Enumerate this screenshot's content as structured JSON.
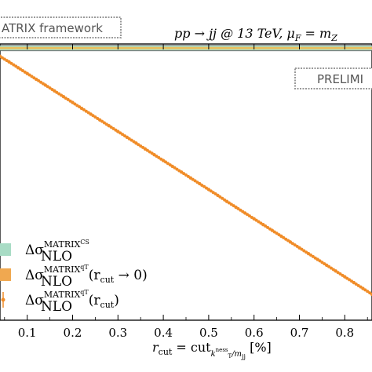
{
  "header": {
    "framework_label": "ATRIX framework",
    "process_label": "pp → jj @ 13 TeV, μ",
    "process_sub": "F",
    "process_tail": " = m",
    "process_tail_sub": "Z",
    "prelim_label": "PRELIMI"
  },
  "legend": {
    "entries": [
      {
        "main": "Δσ",
        "sub": "NLO",
        "sup": "MATRIX",
        "sup2": "CS",
        "tail": "",
        "color": "#a8dcc5",
        "kind": "band"
      },
      {
        "main": "Δσ",
        "sub": "NLO",
        "sup": "MATRIX",
        "sup2": "qT",
        "tail": "(r",
        "tail_sub": "cut",
        "tail_end": " → 0)",
        "color": "#f0a850",
        "kind": "band"
      },
      {
        "main": "Δσ",
        "sub": "NLO",
        "sup": "MATRIX",
        "sup2": "qT",
        "tail": "(r",
        "tail_sub": "cut",
        "tail_end": ")",
        "color": "#f08c28",
        "kind": "points"
      }
    ]
  },
  "xaxis_label": {
    "pre": "r",
    "pre_sub": "cut",
    "mid": " = cut",
    "mid_sub": "k",
    "mid_sub2": "ness",
    "mid_sub3": "T",
    "mid_tail": "/m",
    "mid_tail_sub": "jj",
    "post": " [%]"
  },
  "chart_data": {
    "type": "line",
    "xlabel": "r_cut = cut_{k_T^ness/m_jj} [%]",
    "xlim": [
      0.04,
      0.86
    ],
    "ylim": [
      0,
      1
    ],
    "x_ticks": [
      "0.1",
      "0.2",
      "0.3",
      "0.4",
      "0.5",
      "0.6",
      "0.7",
      "0.8"
    ],
    "x_tick_values": [
      0.1,
      0.2,
      0.3,
      0.4,
      0.5,
      0.6,
      0.7,
      0.8
    ],
    "reference_band_cs": {
      "value": 0.985,
      "color": "#a8dcc5"
    },
    "reference_band_qt": {
      "value": 0.985,
      "color": "#e8c060"
    },
    "series": [
      {
        "name": "Δσ_NLO^{MATRIX qT}(r_cut)",
        "color": "#f08c28",
        "x": [
          0.04,
          0.06,
          0.08,
          0.1,
          0.12,
          0.14,
          0.16,
          0.18,
          0.2,
          0.22,
          0.24,
          0.26,
          0.28,
          0.3,
          0.32,
          0.34,
          0.36,
          0.38,
          0.4,
          0.42,
          0.44,
          0.46,
          0.48,
          0.5,
          0.52,
          0.54,
          0.56,
          0.58,
          0.6,
          0.62,
          0.64,
          0.66,
          0.68,
          0.7,
          0.72,
          0.74,
          0.76,
          0.78,
          0.8,
          0.82,
          0.84,
          0.86
        ],
        "values": [
          0.955,
          0.935,
          0.914,
          0.893,
          0.872,
          0.851,
          0.83,
          0.809,
          0.788,
          0.767,
          0.746,
          0.725,
          0.704,
          0.683,
          0.662,
          0.641,
          0.62,
          0.599,
          0.578,
          0.557,
          0.536,
          0.515,
          0.494,
          0.473,
          0.452,
          0.43,
          0.409,
          0.388,
          0.367,
          0.346,
          0.325,
          0.304,
          0.283,
          0.262,
          0.241,
          0.22,
          0.199,
          0.178,
          0.157,
          0.136,
          0.115,
          0.094
        ]
      }
    ]
  }
}
